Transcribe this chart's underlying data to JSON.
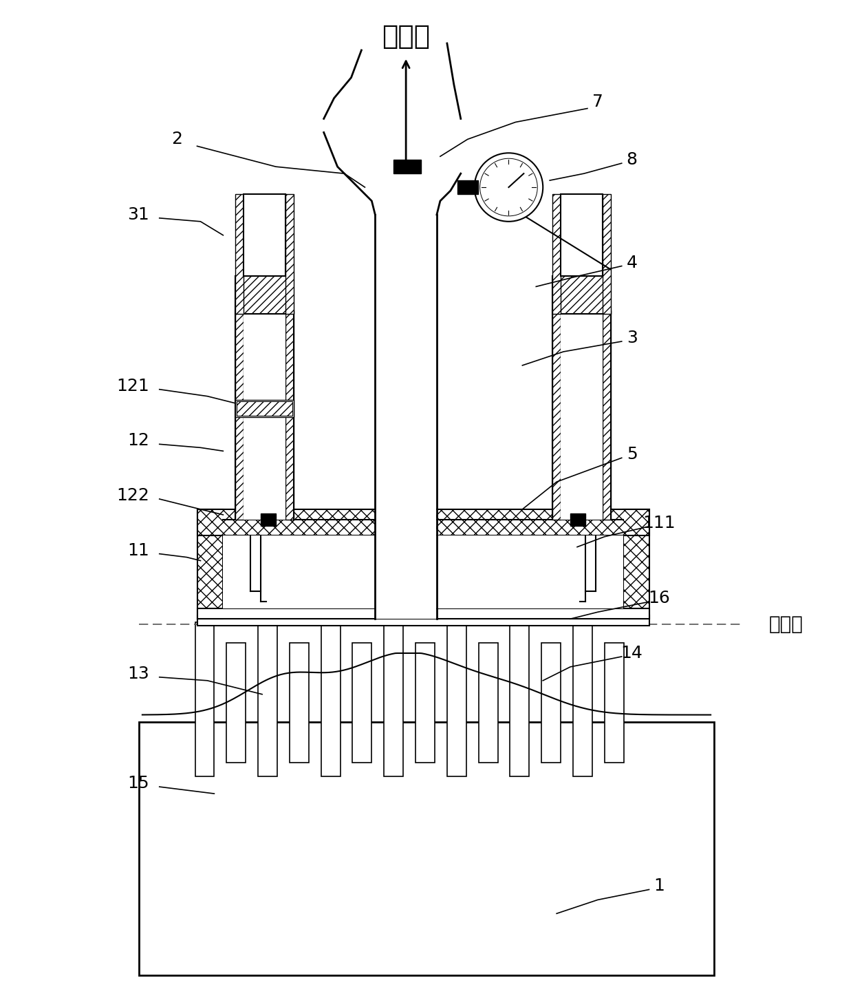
{
  "bg_color": "#ffffff",
  "line_color": "#000000",
  "figsize": [
    12.4,
    14.5
  ],
  "dpi": 100,
  "top_text": "负压源",
  "right_text": "控制线",
  "labels": [
    "2",
    "7",
    "8",
    "31",
    "4",
    "3",
    "121",
    "12",
    "5",
    "122",
    "11",
    "111",
    "16",
    "13",
    "14",
    "15",
    "1"
  ]
}
